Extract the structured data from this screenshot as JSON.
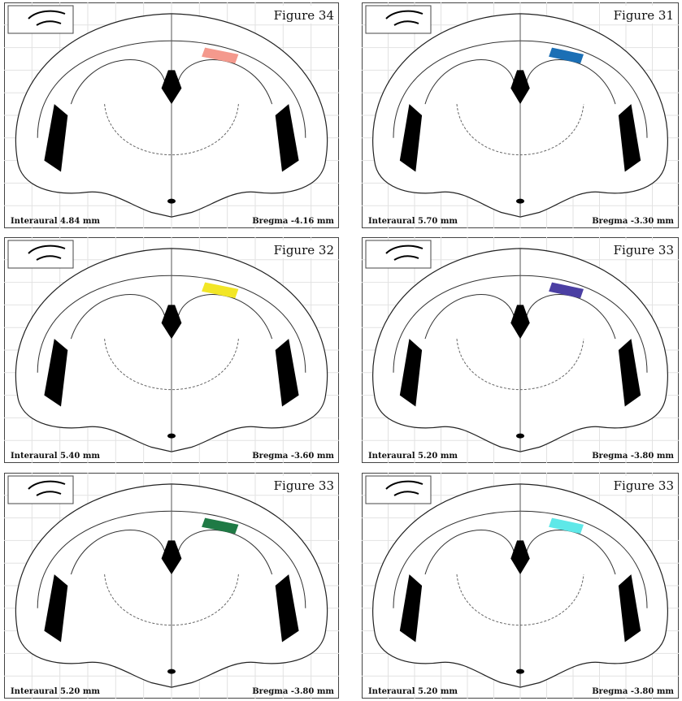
{
  "panels": [
    {
      "figure": "Figure 34",
      "interaural": "Interaural 4.84 mm",
      "bregma": "Bregma -4.16 mm",
      "highlight_color": "#f4998d"
    },
    {
      "figure": "Figure 31",
      "interaural": "Interaural 5.70 mm",
      "bregma": "Bregma -3.30 mm",
      "highlight_color": "#1b6fb5"
    },
    {
      "figure": "Figure 32",
      "interaural": "Interaural 5.40 mm",
      "bregma": "Bregma -3.60 mm",
      "highlight_color": "#f2e626"
    },
    {
      "figure": "Figure 33",
      "interaural": "Interaural 5.20 mm",
      "bregma": "Bregma -3.80 mm",
      "highlight_color": "#4b3fa3"
    },
    {
      "figure": "Figure 33",
      "interaural": "Interaural 5.20 mm",
      "bregma": "Bregma -3.80 mm",
      "highlight_color": "#1f7a45"
    },
    {
      "figure": "Figure 33",
      "interaural": "Interaural 5.20 mm",
      "bregma": "Bregma -3.80 mm",
      "highlight_color": "#5ee8e8"
    }
  ]
}
